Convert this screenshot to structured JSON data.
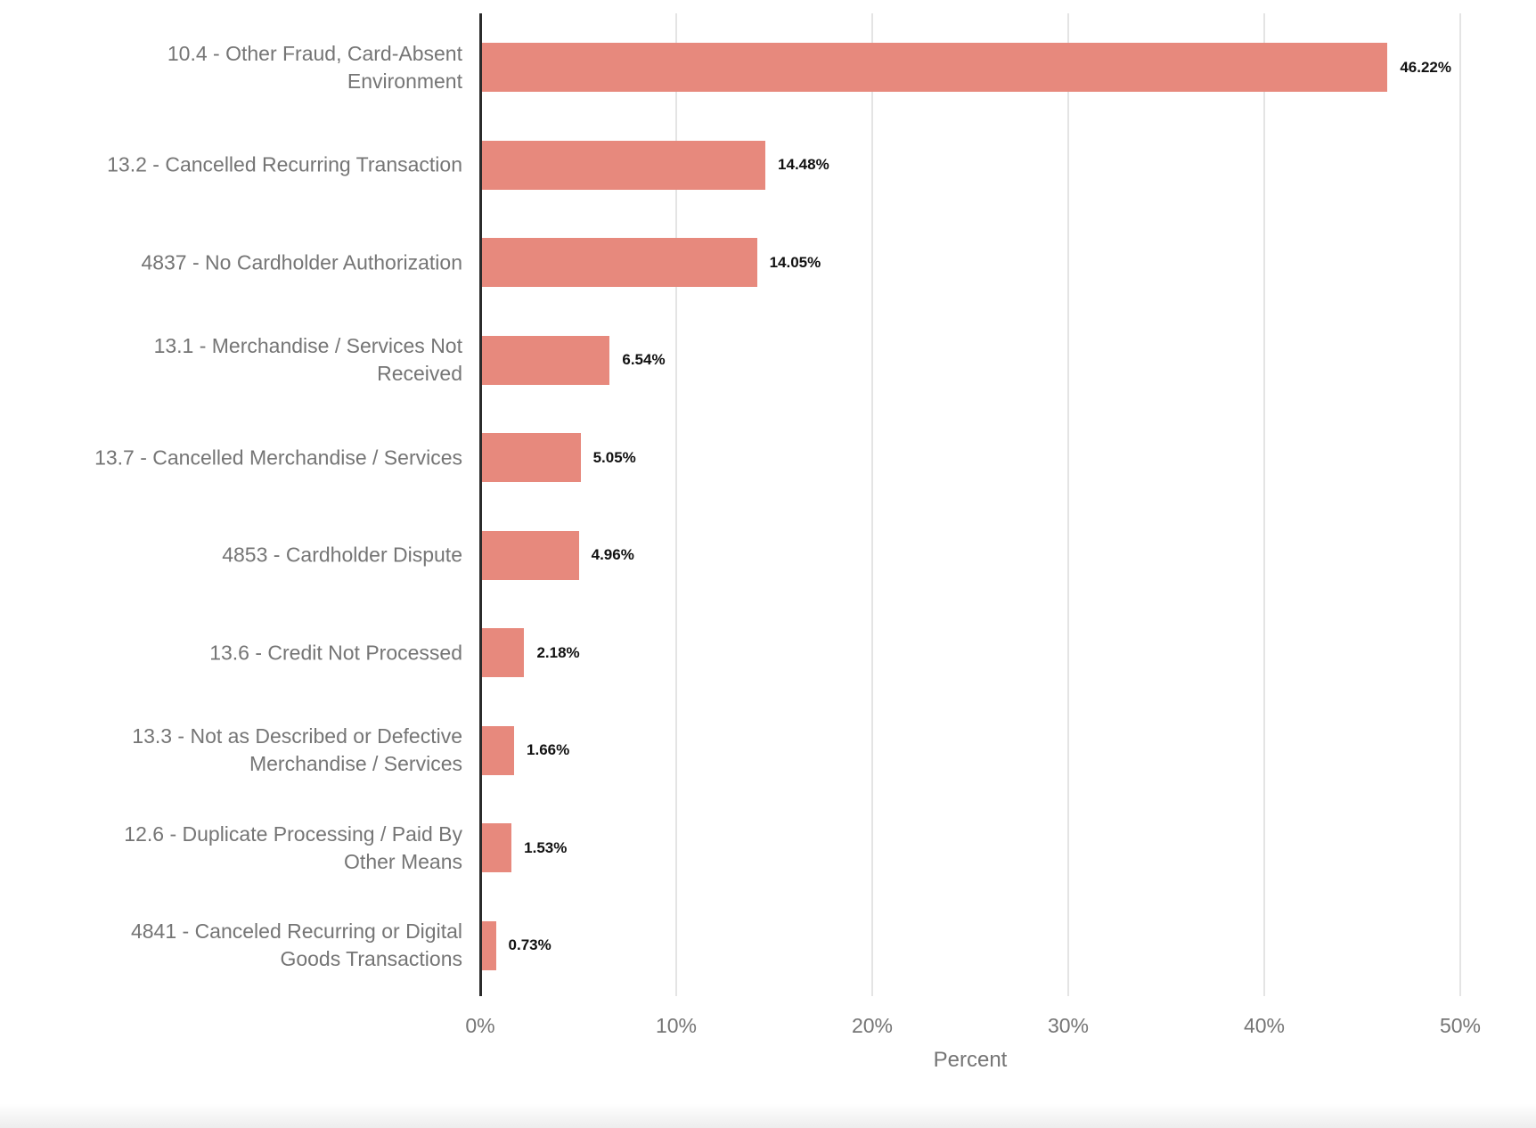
{
  "chart_data": {
    "type": "bar",
    "orientation": "horizontal",
    "title": "",
    "xlabel": "Percent",
    "ylabel": "",
    "xlim": [
      0,
      50
    ],
    "x_ticks": [
      "0%",
      "10%",
      "20%",
      "30%",
      "40%",
      "50%"
    ],
    "x_tick_values": [
      0,
      10,
      20,
      30,
      40,
      50
    ],
    "grid": true,
    "legend": false,
    "categories": [
      "10.4 - Other Fraud, Card-Absent Environment",
      "13.2 - Cancelled Recurring Transaction",
      "4837 - No Cardholder Authorization",
      "13.1 - Merchandise / Services Not Received",
      "13.7 - Cancelled Merchandise / Services",
      "4853 - Cardholder Dispute",
      "13.6 - Credit Not Processed",
      "13.3 - Not as Described or Defective Merchandise / Services",
      "12.6 - Duplicate Processing / Paid By Other Means",
      "4841 - Canceled Recurring or Digital Goods Transactions"
    ],
    "categories_display": [
      [
        "10.4 - Other Fraud, Card-Absent",
        "Environment"
      ],
      [
        "13.2 - Cancelled Recurring Transaction"
      ],
      [
        "4837 - No Cardholder Authorization"
      ],
      [
        "13.1 - Merchandise / Services Not",
        "Received"
      ],
      [
        "13.7 - Cancelled Merchandise / Services"
      ],
      [
        "4853 - Cardholder Dispute"
      ],
      [
        "13.6 - Credit Not Processed"
      ],
      [
        "13.3 - Not as Described or Defective",
        "Merchandise / Services"
      ],
      [
        "12.6 - Duplicate Processing / Paid By",
        "Other Means"
      ],
      [
        "4841 - Canceled Recurring or Digital",
        "Goods Transactions"
      ]
    ],
    "values": [
      46.22,
      14.48,
      14.05,
      6.54,
      5.05,
      4.96,
      2.18,
      1.66,
      1.53,
      0.73
    ],
    "value_labels": [
      "46.22%",
      "14.48%",
      "14.05%",
      "6.54%",
      "5.05%",
      "4.96%",
      "2.18%",
      "1.66%",
      "1.53%",
      "0.73%"
    ]
  },
  "colors": {
    "bar": "#e7897d",
    "axis_line": "#2b2b2b",
    "gridline": "#e4e4e4",
    "category_label": "#757575",
    "tick_label": "#757575",
    "value_label": "#111111",
    "background": "#ffffff"
  }
}
